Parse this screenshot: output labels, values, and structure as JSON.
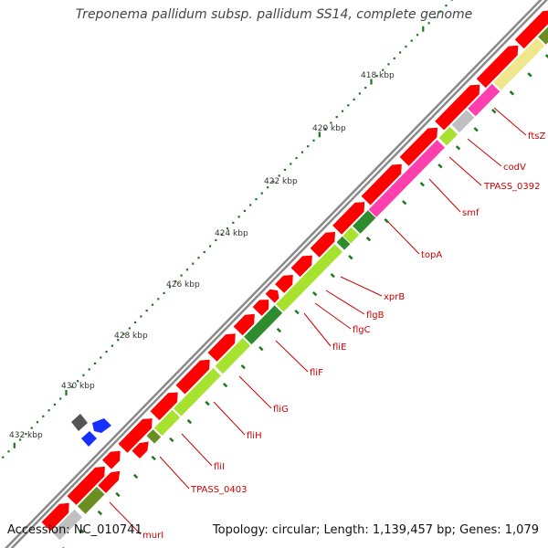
{
  "title": "Treponema pallidum subsp. pallidum SS14, complete genome",
  "footer": {
    "accession": "Accession: NC_010741",
    "summary": "Topology: circular; Length: 1,139,457 bp; Genes: 1,079"
  },
  "scale_labels": [
    "418 kbp",
    "420 kbp",
    "422 kbp",
    "424 kbp",
    "426 kbp",
    "428 kbp",
    "430 kbp",
    "432 kbp"
  ],
  "gene_labels": [
    "ftsZ",
    "codV",
    "TPASS_0392",
    "smf",
    "topA",
    "xprB",
    "flgB",
    "flgC",
    "fliE",
    "fliF",
    "fliG",
    "fliH",
    "fliI",
    "TPASS_0403",
    "murI"
  ],
  "colors": {
    "cds": "#ff0000",
    "backbone": "#8a8a8a",
    "tick": "#1a7a1a",
    "label": "#cc0000",
    "green_light": "#a6e22e",
    "green_dark": "#2e8b2e",
    "green_olive": "#6b8e23",
    "magenta": "#ff3fae",
    "yellow": "#f0e68c",
    "gray": "#c0c0c0",
    "blue": "#1530ff"
  }
}
